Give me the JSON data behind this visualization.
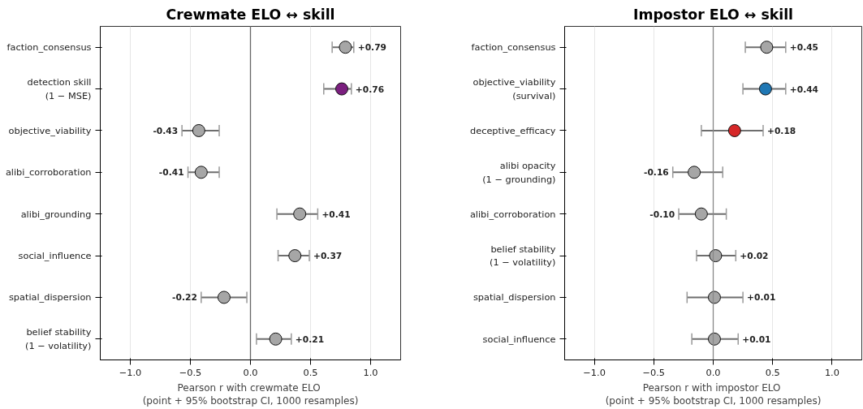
{
  "chart_data": [
    {
      "type": "scatter",
      "orientation": "horizontal",
      "title": "Crewmate ELO ↔ skill",
      "xlabel": "Pearson r  with crewmate ELO\n(point + 95% bootstrap CI, 1000 resamples)",
      "categories": [
        "faction_consensus",
        "detection skill\n(1 − MSE)",
        "objective_viability",
        "alibi_corroboration",
        "alibi_grounding",
        "social_influence",
        "spatial_dispersion",
        "belief stability\n(1 − volatility)"
      ],
      "values": [
        0.79,
        0.76,
        -0.43,
        -0.41,
        0.41,
        0.37,
        -0.22,
        0.21
      ],
      "colors": [
        "#a6a6a6",
        "#7b1f7f",
        "#a6a6a6",
        "#a6a6a6",
        "#a6a6a6",
        "#a6a6a6",
        "#a6a6a6",
        "#a6a6a6"
      ],
      "errors": [
        [
          0.68,
          0.86
        ],
        [
          0.61,
          0.84
        ],
        [
          -0.57,
          -0.26
        ],
        [
          -0.52,
          -0.26
        ],
        [
          0.22,
          0.56
        ],
        [
          0.23,
          0.49
        ],
        [
          -0.41,
          -0.03
        ],
        [
          0.05,
          0.34
        ]
      ],
      "value_labels": [
        "+0.79",
        "+0.76",
        "-0.43",
        "-0.41",
        "+0.41",
        "+0.37",
        "-0.22",
        "+0.21"
      ],
      "xlim": [
        -1.25,
        1.25
      ],
      "xticks": [
        {
          "value": -1,
          "label": "−1.0"
        },
        {
          "value": -0.5,
          "label": "−0.5"
        },
        {
          "value": 0,
          "label": "0.0"
        },
        {
          "value": 0.5,
          "label": "0.5"
        },
        {
          "value": 1,
          "label": "1.0"
        }
      ],
      "ref_lines": [
        {
          "axis": "x",
          "value": 0,
          "color": "#666666"
        }
      ],
      "grid": "x",
      "marker": "circle"
    },
    {
      "type": "scatter",
      "orientation": "horizontal",
      "title": "Impostor ELO ↔ skill",
      "xlabel": "Pearson r  with impostor ELO\n(point + 95% bootstrap CI, 1000 resamples)",
      "categories": [
        "faction_consensus",
        "objective_viability\n(survival)",
        "deceptive_efficacy",
        "alibi opacity\n(1 − grounding)",
        "alibi_corroboration",
        "belief stability\n(1 − volatility)",
        "spatial_dispersion",
        "social_influence"
      ],
      "values": [
        0.45,
        0.44,
        0.18,
        -0.16,
        -0.1,
        0.02,
        0.01,
        0.01
      ],
      "colors": [
        "#a6a6a6",
        "#1f77b4",
        "#d62728",
        "#a6a6a6",
        "#a6a6a6",
        "#a6a6a6",
        "#a6a6a6",
        "#a6a6a6"
      ],
      "errors": [
        [
          0.27,
          0.61
        ],
        [
          0.25,
          0.61
        ],
        [
          -0.1,
          0.42
        ],
        [
          -0.34,
          0.08
        ],
        [
          -0.29,
          0.11
        ],
        [
          -0.14,
          0.19
        ],
        [
          -0.22,
          0.25
        ],
        [
          -0.18,
          0.21
        ]
      ],
      "value_labels": [
        "+0.45",
        "+0.44",
        "+0.18",
        "-0.16",
        "-0.10",
        "+0.02",
        "+0.01",
        "+0.01"
      ],
      "xlim": [
        -1.25,
        1.25
      ],
      "xticks": [
        {
          "value": -1,
          "label": "−1.0"
        },
        {
          "value": -0.5,
          "label": "−0.5"
        },
        {
          "value": 0,
          "label": "0.0"
        },
        {
          "value": 0.5,
          "label": "0.5"
        },
        {
          "value": 1,
          "label": "1.0"
        }
      ],
      "ref_lines": [
        {
          "axis": "x",
          "value": 0,
          "color": "#888888"
        }
      ],
      "grid": "x",
      "marker": "circle"
    }
  ]
}
